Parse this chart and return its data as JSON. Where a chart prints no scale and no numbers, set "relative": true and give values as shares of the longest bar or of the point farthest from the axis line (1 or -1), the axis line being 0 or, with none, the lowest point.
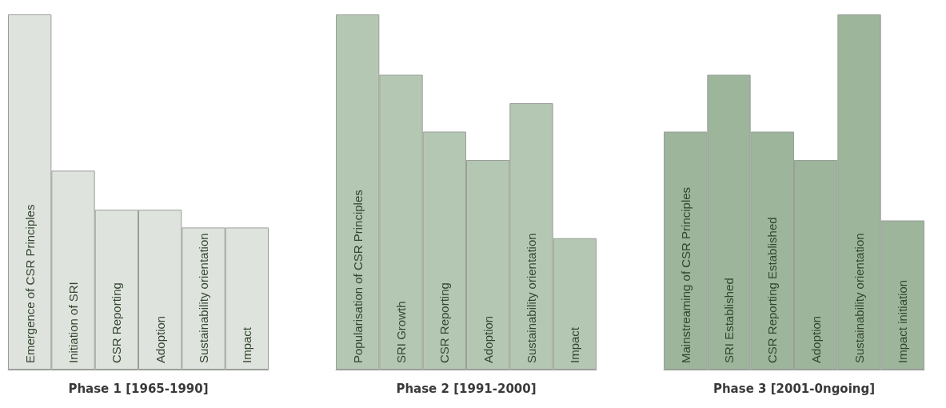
{
  "chart_data": [
    {
      "type": "bar",
      "relative": true,
      "xlabel": "Phase 1 [1965-1990]",
      "categories": [
        "Emergence of CSR Principles",
        "Initiation of SRI",
        "CSR Reporting",
        "Adoption",
        "Sustainability orientation",
        "Impact"
      ],
      "values": [
        1,
        0.56,
        0.45,
        0.45,
        0.4,
        0.4
      ],
      "color": "#dfe3dd"
    },
    {
      "type": "bar",
      "relative": true,
      "xlabel": "Phase 2 [1991-2000]",
      "categories": [
        "Popularisation of CSR Principles",
        "SRI Growth",
        "CSR Reporting",
        "Adoption",
        "Sustainability orientation",
        "Impact"
      ],
      "values": [
        1,
        0.83,
        0.67,
        0.59,
        0.75,
        0.37
      ],
      "color": "#b4c7b2"
    },
    {
      "type": "bar",
      "relative": true,
      "xlabel": "Phase 3 [2001-0ngoing]",
      "categories": [
        "Mainstreaming of CSR Principles",
        "SRI Established",
        "CSR Reporting Established",
        "Adoption",
        "Sustainability orientation",
        "Impact initiation"
      ],
      "values": [
        0.67,
        0.83,
        0.67,
        0.59,
        1,
        0.42
      ],
      "color": "#9db59b"
    }
  ]
}
